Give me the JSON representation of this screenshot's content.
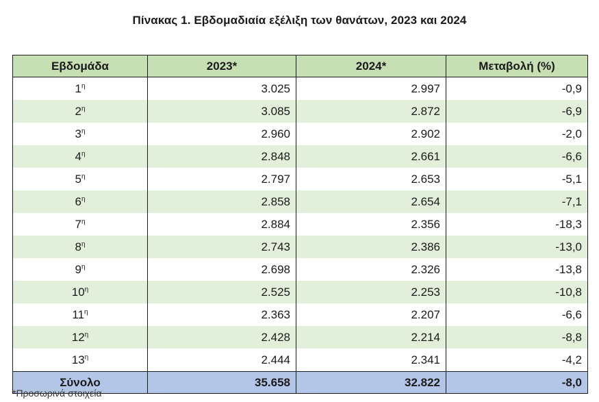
{
  "title": "Πίνακας 1. Εβδομαδιαία εξέλιξη των θανάτων, 2023 και 2024",
  "headers": [
    "Εβδομάδα",
    "2023*",
    "2024*",
    "Μεταβολή (%)"
  ],
  "week_suffix": "η",
  "rows": [
    {
      "week": "1",
      "y2023": "3.025",
      "y2024": "2.997",
      "change": "-0,9"
    },
    {
      "week": "2",
      "y2023": "3.085",
      "y2024": "2.872",
      "change": "-6,9"
    },
    {
      "week": "3",
      "y2023": "2.960",
      "y2024": "2.902",
      "change": "-2,0"
    },
    {
      "week": "4",
      "y2023": "2.848",
      "y2024": "2.661",
      "change": "-6,6"
    },
    {
      "week": "5",
      "y2023": "2.797",
      "y2024": "2.653",
      "change": "-5,1"
    },
    {
      "week": "6",
      "y2023": "2.858",
      "y2024": "2.654",
      "change": "-7,1"
    },
    {
      "week": "7",
      "y2023": "2.884",
      "y2024": "2.356",
      "change": "-18,3"
    },
    {
      "week": "8",
      "y2023": "2.743",
      "y2024": "2.386",
      "change": "-13,0"
    },
    {
      "week": "9",
      "y2023": "2.698",
      "y2024": "2.326",
      "change": "-13,8"
    },
    {
      "week": "10",
      "y2023": "2.525",
      "y2024": "2.253",
      "change": "-10,8"
    },
    {
      "week": "11",
      "y2023": "2.363",
      "y2024": "2.207",
      "change": "-6,6"
    },
    {
      "week": "12",
      "y2023": "2.428",
      "y2024": "2.214",
      "change": "-8,8"
    },
    {
      "week": "13",
      "y2023": "2.444",
      "y2024": "2.341",
      "change": "-4,2"
    }
  ],
  "total": {
    "label": "Σύνολο",
    "y2023": "35.658",
    "y2024": "32.822",
    "change": "-8,0"
  },
  "footnote": "*Προσωρινά στοιχεία",
  "colors": {
    "header_bg": "#c6e0b4",
    "stripe_bg": "#e2efda",
    "total_bg": "#b4c6e7"
  }
}
